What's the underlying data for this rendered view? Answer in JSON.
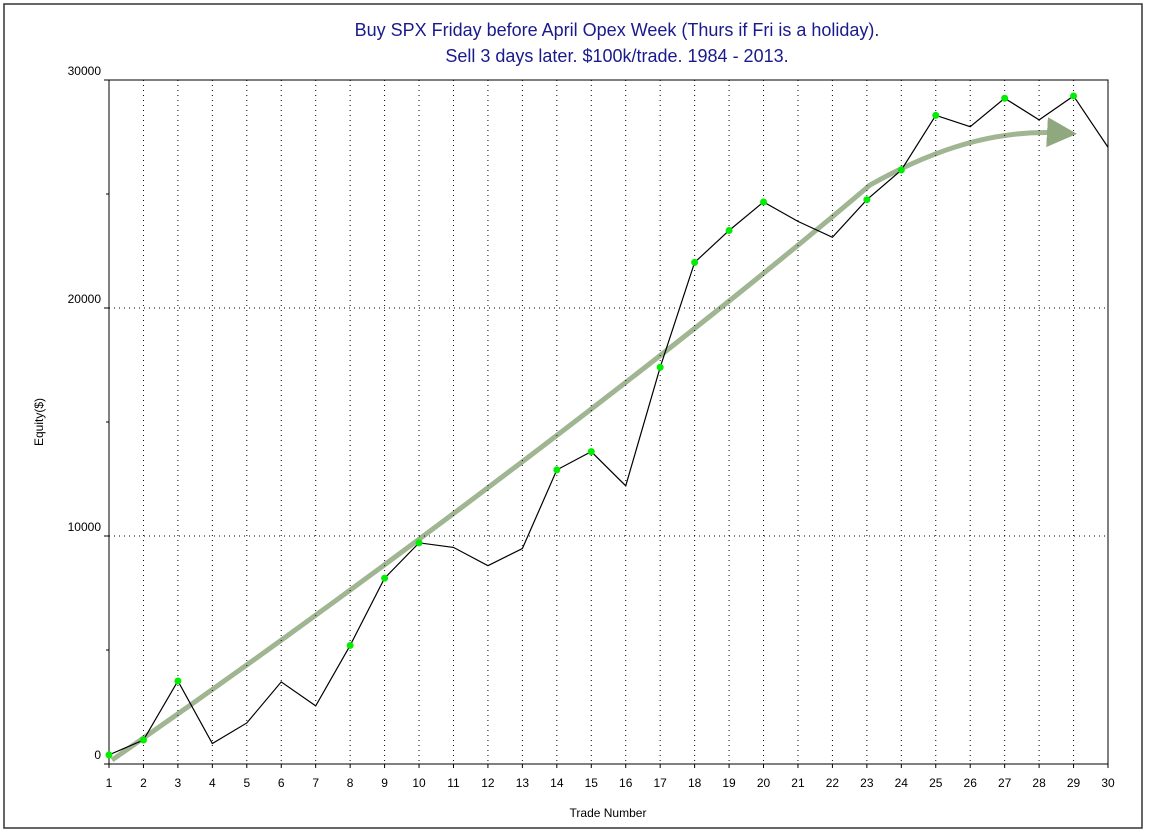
{
  "chart_data": {
    "type": "line",
    "title": [
      "Buy SPX Friday before April Opex Week (Thurs if Fri is a holiday).",
      "Sell 3 days later. $100k/trade. 1984 - 2013."
    ],
    "x_label": "Trade Number",
    "y_label": "Equity($)",
    "x": [
      1,
      2,
      3,
      4,
      5,
      6,
      7,
      8,
      9,
      10,
      11,
      12,
      13,
      14,
      15,
      16,
      17,
      18,
      19,
      20,
      21,
      22,
      23,
      24,
      25,
      26,
      27,
      28,
      29,
      30
    ],
    "series": [
      {
        "color": "#000000",
        "marker_color": "#00ee00",
        "values": [
          400,
          1050,
          3640,
          900,
          1800,
          3600,
          2550,
          5200,
          8150,
          9700,
          9500,
          8700,
          9450,
          12900,
          13700,
          12200,
          17400,
          22000,
          23400,
          24650,
          23800,
          23100,
          24750,
          26050,
          28450,
          27950,
          29200,
          28250,
          29300,
          27050
        ]
      }
    ],
    "xlim": [
      1,
      30
    ],
    "xticks": [
      1,
      2,
      3,
      4,
      5,
      6,
      7,
      8,
      9,
      10,
      11,
      12,
      13,
      14,
      15,
      16,
      17,
      18,
      19,
      20,
      21,
      22,
      23,
      24,
      25,
      26,
      27,
      28,
      29,
      30
    ],
    "ylim": [
      0,
      30000
    ],
    "yticks": [
      0,
      10000,
      20000,
      30000
    ],
    "minor_yticks": [
      5000,
      15000,
      25000
    ],
    "grid": true
  }
}
